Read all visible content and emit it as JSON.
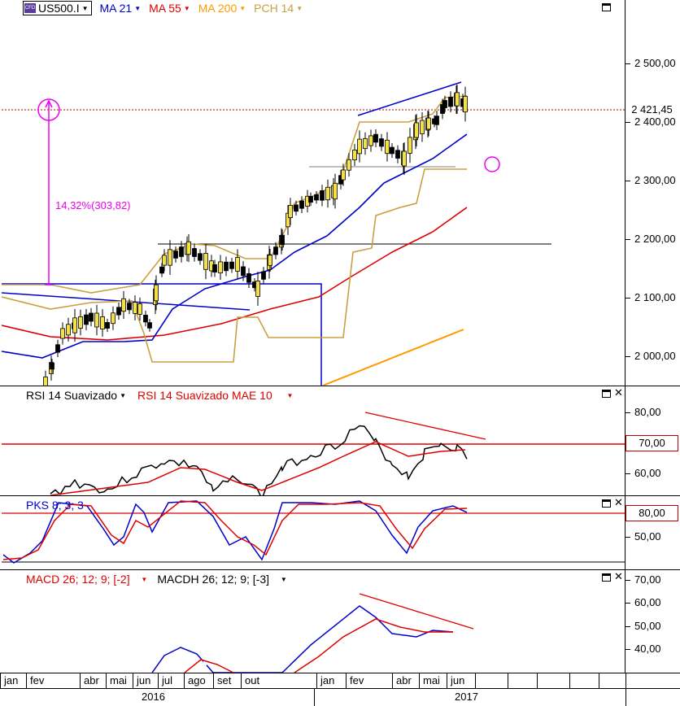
{
  "main": {
    "symbol": "US500.I",
    "indicators": [
      {
        "label": "MA 21",
        "color": "#0000cc"
      },
      {
        "label": "MA 55",
        "color": "#dd0000"
      },
      {
        "label": "MA 200",
        "color": "#ff9900"
      },
      {
        "label": "PCH 14",
        "color": "#c8a040"
      }
    ],
    "y_ticks": [
      "2 500,00",
      "2 400,00",
      "2 300,00",
      "2 200,00",
      "2 100,00",
      "2 000,00"
    ],
    "last_price": "2 421,45",
    "annotation": "14,32%(303,82)"
  },
  "rsi": {
    "labels": [
      {
        "label": "RSI 14 Suavizado",
        "color": "#000000"
      },
      {
        "label": "RSI 14 Suavizado MAE 10",
        "color": "#dd0000"
      }
    ],
    "y_ticks": [
      "80,00",
      "60,00"
    ],
    "level": "70,00"
  },
  "pks": {
    "label": "PKS 8; 3; 3",
    "color": "#0000cc",
    "y_ticks": [
      "50,00"
    ],
    "level": "80,00"
  },
  "macd": {
    "labels": [
      {
        "label": "MACD 26; 12; 9; [-2]",
        "color": "#dd0000"
      },
      {
        "label": "MACDH 26; 12; 9; [-3]",
        "color": "#000000"
      }
    ],
    "y_ticks": [
      "70,00",
      "60,00",
      "50,00",
      "40,00"
    ]
  },
  "x_axis": {
    "months": [
      "jan",
      "fev",
      "abr",
      "mai",
      "jun",
      "jul",
      "ago",
      "set",
      "out",
      "jan",
      "fev",
      "abr",
      "mai",
      "jun"
    ],
    "years": [
      "2016",
      "2017"
    ]
  },
  "colors": {
    "ma21": "#0000cc",
    "ma55": "#dd0000",
    "ma200": "#ff9900",
    "pch": "#c8a040",
    "annotation": "#ee00ee"
  }
}
